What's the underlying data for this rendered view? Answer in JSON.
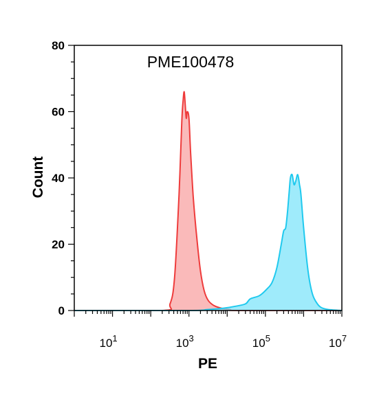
{
  "chart_data": {
    "type": "area",
    "title": "PME100478",
    "xlabel": "PE",
    "ylabel": "Count",
    "x_scale": "log",
    "xlim": [
      1,
      10000000
    ],
    "ylim": [
      0,
      80
    ],
    "grid": false,
    "legend": "none",
    "x_ticks": [
      {
        "value": 10,
        "base": "10",
        "exp": "1"
      },
      {
        "value": 1000,
        "base": "10",
        "exp": "3"
      },
      {
        "value": 100000,
        "base": "10",
        "exp": "5"
      },
      {
        "value": 10000000,
        "base": "10",
        "exp": "7"
      }
    ],
    "y_ticks": [
      {
        "value": 0,
        "label": "0"
      },
      {
        "value": 20,
        "label": "20"
      },
      {
        "value": 40,
        "label": "40"
      },
      {
        "value": 60,
        "label": "60"
      },
      {
        "value": 80,
        "label": "80"
      }
    ],
    "series": [
      {
        "fill": "#f8a3a3",
        "stroke": "#ee3b3b",
        "x": [
          1,
          200,
          320,
          420,
          550,
          650,
          700,
          750,
          800,
          850,
          900,
          1000,
          1100,
          1300,
          1600,
          2000,
          2500,
          3200,
          4500,
          7000,
          12000,
          20000,
          10000000
        ],
        "y": [
          0,
          0,
          2,
          10,
          35,
          57,
          63,
          66,
          62,
          58,
          60,
          58,
          48,
          34,
          22,
          12,
          6,
          3,
          1.5,
          0.7,
          0.3,
          0,
          0
        ]
      },
      {
        "fill": "#7fe4fa",
        "stroke": "#1fc9ee",
        "x": [
          1,
          1000,
          3000,
          8000,
          15000,
          30000,
          40000,
          70000,
          110000,
          150000,
          200000,
          260000,
          300000,
          340000,
          380000,
          420000,
          450000,
          500000,
          560000,
          620000,
          700000,
          780000,
          850000,
          1000000,
          1300000,
          1700000,
          2300000,
          3000000,
          4500000,
          10000000
        ],
        "y": [
          0,
          0,
          0.3,
          0.7,
          1.2,
          2.0,
          3.5,
          4.5,
          6.5,
          8.5,
          13,
          20,
          24,
          25,
          30,
          36,
          40,
          41,
          38,
          39,
          41,
          38,
          35,
          25,
          12,
          5,
          2,
          0.8,
          0.3,
          0
        ]
      }
    ]
  }
}
